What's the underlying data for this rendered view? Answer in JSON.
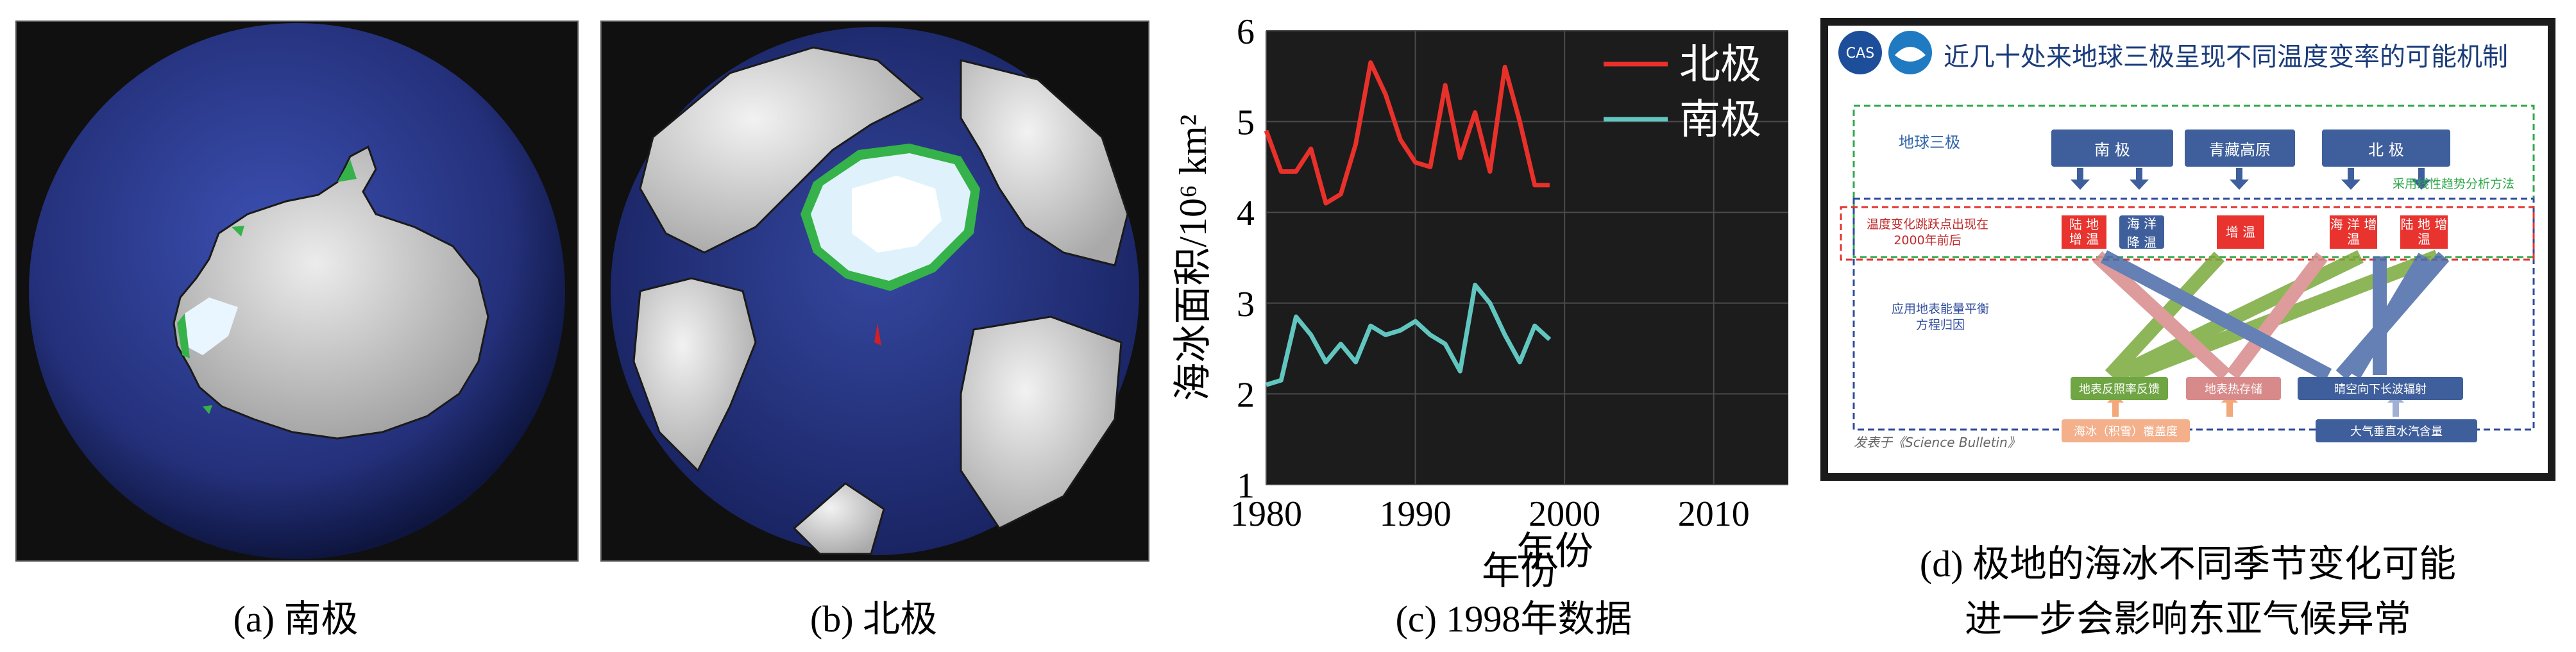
{
  "panel_a": {
    "caption": "(a) 南极"
  },
  "panel_b": {
    "caption": "(b) 北极"
  },
  "panel_c": {
    "caption": "(c) 1998年数据"
  },
  "panel_d": {
    "caption_line1": "(d) 极地的海冰不同季节变化可能",
    "caption_line2": "进一步会影响东亚气候异常",
    "logo_text": "CAS",
    "title": "近几十处来地球三极呈现不同温度变率的可能机制",
    "label_three_poles": "地球三极",
    "label_method": "采用线性趋势分析方法",
    "label_jump": "温度变化跳跃点出现在2000年前后",
    "label_attrib": "应用地表能量平衡方程归因",
    "label_published": "发表于《Science Bulletin》",
    "top_boxes": [
      "南 极",
      "青藏高原",
      "北 极"
    ],
    "red_boxes": [
      "陆 地 增 温",
      "海 洋 降 温",
      "增 温",
      "海 洋 增 温",
      "陆 地 增 温"
    ],
    "mech_boxes": [
      "地表反照率反馈",
      "地表热存储",
      "晴空向下长波辐射"
    ],
    "source_boxes": [
      "海冰（积雪）覆盖度",
      "大气垂直水汽含量"
    ]
  },
  "chart_data": {
    "type": "line",
    "title": "",
    "xlabel": "年份",
    "ylabel": "海冰面积/10⁶ km²",
    "xlim": [
      1980,
      2015
    ],
    "ylim": [
      1,
      6
    ],
    "xticks": [
      1980,
      1990,
      2000,
      2010
    ],
    "yticks": [
      1,
      2,
      3,
      4,
      5,
      6
    ],
    "legend_position": "top-right",
    "background": "#1c1c1c",
    "series": [
      {
        "name": "北极",
        "color": "#e8312a",
        "x": [
          1980,
          1981,
          1982,
          1983,
          1984,
          1985,
          1986,
          1987,
          1988,
          1989,
          1990,
          1991,
          1992,
          1993,
          1994,
          1995,
          1996,
          1997,
          1998,
          1999
        ],
        "y": [
          4.9,
          4.45,
          4.45,
          4.7,
          4.1,
          4.2,
          4.75,
          5.65,
          5.3,
          4.8,
          4.55,
          4.5,
          5.4,
          4.6,
          5.1,
          4.45,
          5.6,
          5.0,
          4.3,
          4.3
        ]
      },
      {
        "name": "南极",
        "color": "#62c6c0",
        "x": [
          1980,
          1981,
          1982,
          1983,
          1984,
          1985,
          1986,
          1987,
          1988,
          1989,
          1990,
          1991,
          1992,
          1993,
          1994,
          1995,
          1996,
          1997,
          1998,
          1999
        ],
        "y": [
          2.1,
          2.15,
          2.85,
          2.65,
          2.35,
          2.55,
          2.35,
          2.75,
          2.65,
          2.7,
          2.8,
          2.65,
          2.55,
          2.25,
          3.2,
          3.0,
          2.65,
          2.35,
          2.75,
          2.6
        ]
      }
    ]
  }
}
